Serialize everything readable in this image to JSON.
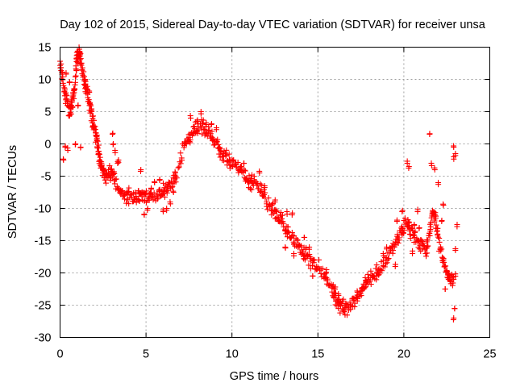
{
  "chart_data": {
    "type": "scatter",
    "title": "Day 102 of 2015, Sidereal Day-to-day VTEC variation (SDTVAR) for receiver unsa",
    "xlabel": "GPS time / hours",
    "ylabel": "SDTVAR / TECUs",
    "xlim": [
      0,
      25
    ],
    "ylim": [
      -30,
      15
    ],
    "xticks": [
      0,
      5,
      10,
      15,
      20,
      25
    ],
    "yticks": [
      -30,
      -25,
      -20,
      -15,
      -10,
      -5,
      0,
      5,
      10,
      15
    ],
    "grid": true,
    "marker": "+",
    "color": "#ff0000",
    "series": [
      {
        "name": "SDTVAR",
        "trace": [
          [
            0.0,
            12
          ],
          [
            0.15,
            10.5
          ],
          [
            0.3,
            8
          ],
          [
            0.45,
            6
          ],
          [
            0.6,
            5
          ],
          [
            0.75,
            7
          ],
          [
            0.9,
            10
          ],
          [
            1.0,
            13.5
          ],
          [
            1.1,
            14
          ],
          [
            1.2,
            13
          ],
          [
            1.35,
            11
          ],
          [
            1.5,
            9
          ],
          [
            1.65,
            6.5
          ],
          [
            1.8,
            5
          ],
          [
            1.95,
            3
          ],
          [
            2.1,
            1
          ],
          [
            2.2,
            -0.5
          ],
          [
            2.3,
            -2
          ],
          [
            2.45,
            -4
          ],
          [
            2.6,
            -5
          ],
          [
            2.8,
            -4.5
          ],
          [
            3.0,
            -4.5
          ],
          [
            3.2,
            -5.5
          ],
          [
            3.5,
            -7
          ],
          [
            3.8,
            -8
          ],
          [
            4.1,
            -8
          ],
          [
            4.4,
            -8.5
          ],
          [
            4.7,
            -8
          ],
          [
            5.0,
            -8.5
          ],
          [
            5.3,
            -8
          ],
          [
            5.6,
            -8.5
          ],
          [
            5.9,
            -7.5
          ],
          [
            6.2,
            -7
          ],
          [
            6.5,
            -6
          ],
          [
            6.8,
            -5
          ],
          [
            7.2,
            0
          ],
          [
            7.5,
            1
          ],
          [
            7.8,
            2
          ],
          [
            8.1,
            2.5
          ],
          [
            8.4,
            2.5
          ],
          [
            8.7,
            1.5
          ],
          [
            9.0,
            0
          ],
          [
            9.3,
            -1
          ],
          [
            9.6,
            -2
          ],
          [
            9.9,
            -2.5
          ],
          [
            10.2,
            -3.5
          ],
          [
            10.5,
            -4
          ],
          [
            10.8,
            -5
          ],
          [
            11.1,
            -6
          ],
          [
            11.4,
            -6
          ],
          [
            11.7,
            -7
          ],
          [
            12.0,
            -8.5
          ],
          [
            12.3,
            -10
          ],
          [
            12.6,
            -11
          ],
          [
            12.9,
            -12
          ],
          [
            13.2,
            -13.5
          ],
          [
            13.5,
            -14.5
          ],
          [
            13.8,
            -15.5
          ],
          [
            14.1,
            -16.5
          ],
          [
            14.4,
            -17.5
          ],
          [
            14.7,
            -18.5
          ],
          [
            15.0,
            -19
          ],
          [
            15.4,
            -20.5
          ],
          [
            15.8,
            -22
          ],
          [
            16.0,
            -24
          ],
          [
            16.3,
            -25
          ],
          [
            16.6,
            -25.5
          ],
          [
            16.9,
            -25
          ],
          [
            17.2,
            -24
          ],
          [
            17.5,
            -22.5
          ],
          [
            17.8,
            -21.5
          ],
          [
            18.1,
            -20.5
          ],
          [
            18.4,
            -20
          ],
          [
            18.7,
            -19
          ],
          [
            19.0,
            -18
          ],
          [
            19.3,
            -16.5
          ],
          [
            19.6,
            -15
          ],
          [
            19.9,
            -13.5
          ],
          [
            20.2,
            -12
          ],
          [
            20.4,
            -13.5
          ],
          [
            20.7,
            -14.5
          ],
          [
            21.0,
            -16
          ],
          [
            21.3,
            -16.5
          ],
          [
            21.5,
            -14
          ],
          [
            21.7,
            -10
          ],
          [
            21.9,
            -13
          ],
          [
            22.1,
            -16
          ],
          [
            22.3,
            -18
          ],
          [
            22.5,
            -20
          ],
          [
            22.7,
            -20.5
          ],
          [
            22.9,
            -21
          ]
        ],
        "extra_points": [
          [
            0.3,
            -0.5
          ],
          [
            0.45,
            -1
          ],
          [
            0.2,
            -2.5
          ],
          [
            0.9,
            0
          ],
          [
            1.2,
            -0.5
          ],
          [
            0.35,
            11
          ],
          [
            0.55,
            9.5
          ],
          [
            0.8,
            8.5
          ],
          [
            1.05,
            6
          ],
          [
            1.45,
            10
          ],
          [
            1.7,
            8
          ],
          [
            3.05,
            1.5
          ],
          [
            3.1,
            0
          ],
          [
            3.2,
            -1
          ],
          [
            3.35,
            -3
          ],
          [
            3.4,
            -2.5
          ],
          [
            4.7,
            -4
          ],
          [
            4.9,
            -11
          ],
          [
            5.1,
            -10
          ],
          [
            5.3,
            -7
          ],
          [
            5.5,
            -6
          ],
          [
            5.8,
            -5.5
          ],
          [
            6.0,
            -10.5
          ],
          [
            6.2,
            -10
          ],
          [
            6.4,
            -9
          ],
          [
            6.6,
            -7.5
          ],
          [
            6.7,
            -4.5
          ],
          [
            7.6,
            4
          ],
          [
            8.0,
            3.5
          ],
          [
            8.2,
            5
          ],
          [
            8.5,
            3
          ],
          [
            8.8,
            3
          ],
          [
            9.1,
            2.5
          ],
          [
            10.7,
            -3
          ],
          [
            11.6,
            -4.5
          ],
          [
            11.9,
            -6.5
          ],
          [
            12.5,
            -9
          ],
          [
            12.7,
            -12
          ],
          [
            13.2,
            -10.5
          ],
          [
            13.5,
            -11
          ],
          [
            13.1,
            -16
          ],
          [
            13.6,
            -17
          ],
          [
            14.2,
            -14.5
          ],
          [
            14.5,
            -16
          ],
          [
            14.7,
            -20.5
          ],
          [
            15.5,
            -19.5
          ],
          [
            16.0,
            -22.5
          ],
          [
            16.2,
            -23.5
          ],
          [
            17.3,
            -23
          ],
          [
            17.8,
            -21.5
          ],
          [
            18.2,
            -20.5
          ],
          [
            18.8,
            -17
          ],
          [
            19.0,
            -16
          ],
          [
            19.5,
            -19
          ],
          [
            19.6,
            -12
          ],
          [
            19.9,
            -10.5
          ],
          [
            20.5,
            -17
          ],
          [
            20.6,
            -12.5
          ],
          [
            20.8,
            -10.5
          ],
          [
            20.9,
            -13
          ],
          [
            20.2,
            -3
          ],
          [
            20.3,
            -3.5
          ],
          [
            21.5,
            1.5
          ],
          [
            21.6,
            -3
          ],
          [
            21.8,
            -4
          ],
          [
            22.0,
            -6
          ],
          [
            22.2,
            -12
          ],
          [
            22.3,
            -9.5
          ],
          [
            22.4,
            -22.5
          ],
          [
            22.6,
            -21
          ],
          [
            22.9,
            -2
          ],
          [
            22.9,
            -0.5
          ],
          [
            23.0,
            -1.5
          ],
          [
            23.1,
            -12.5
          ],
          [
            23.0,
            -16.5
          ],
          [
            23.0,
            -20.5
          ],
          [
            22.95,
            -25.5
          ],
          [
            22.9,
            -27
          ]
        ]
      }
    ]
  }
}
